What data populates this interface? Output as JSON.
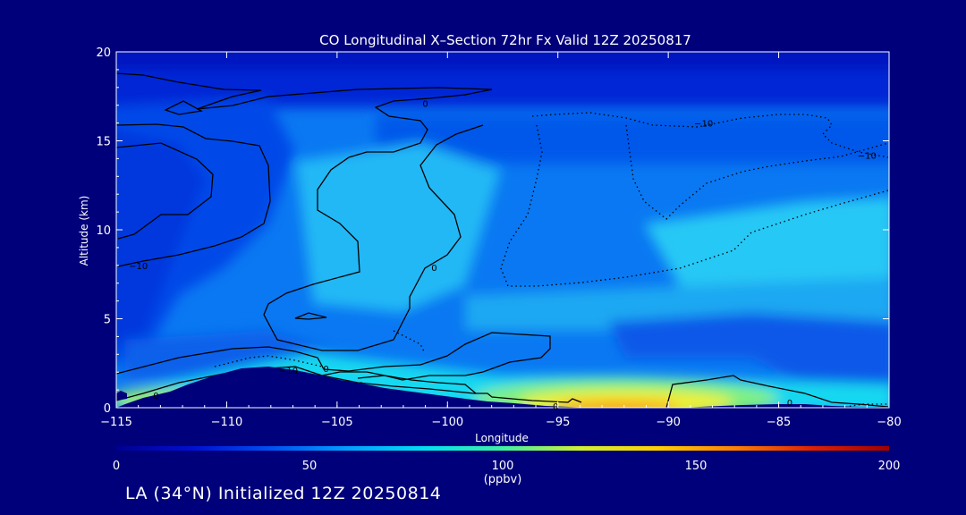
{
  "chart_data": {
    "type": "heatmap",
    "title": "CO Longitudinal X–Section 72hr  Fx Valid 12Z 20250817",
    "xlabel": "Longitude",
    "ylabel": "Altitude (km)",
    "xlim": [
      -115,
      -80
    ],
    "ylim": [
      0,
      20
    ],
    "x_ticks": [
      "−115",
      "−110",
      "−105",
      "−100",
      "−95",
      "−90",
      "−85",
      "−80"
    ],
    "y_ticks": [
      "0",
      "5",
      "10",
      "15",
      "20"
    ],
    "colorbar": {
      "min": 0,
      "max": 200,
      "ticks": [
        "0",
        "50",
        "100",
        "150",
        "200"
      ],
      "units": "(ppbv)",
      "colors": [
        "#000090",
        "#0010d0",
        "#0050f0",
        "#00a0ff",
        "#00e0f0",
        "#40f0a0",
        "#d0f030",
        "#ffd000",
        "#ff8000",
        "#e02000",
        "#a00000"
      ]
    },
    "grid": false,
    "contour_labels": [
      {
        "text": "0",
        "lon": -101,
        "alt": 17.1
      },
      {
        "text": "0",
        "lon": -100.6,
        "alt": 7.9
      },
      {
        "text": "0",
        "lon": -105.5,
        "alt": 2.2
      },
      {
        "text": "0",
        "lon": -113.2,
        "alt": 0.7
      },
      {
        "text": "0",
        "lon": -95.1,
        "alt": 0.1
      },
      {
        "text": "0",
        "lon": -84.5,
        "alt": 0.3
      },
      {
        "text": "−10",
        "lon": -114,
        "alt": 8
      },
      {
        "text": "−10",
        "lon": -107.2,
        "alt": 2.1
      },
      {
        "text": "−10",
        "lon": -88.4,
        "alt": 16
      },
      {
        "text": "−10",
        "lon": -81,
        "alt": 14.2
      }
    ]
  },
  "footer": {
    "caption": "LA (34°N) Initialized 12Z 20250814"
  }
}
